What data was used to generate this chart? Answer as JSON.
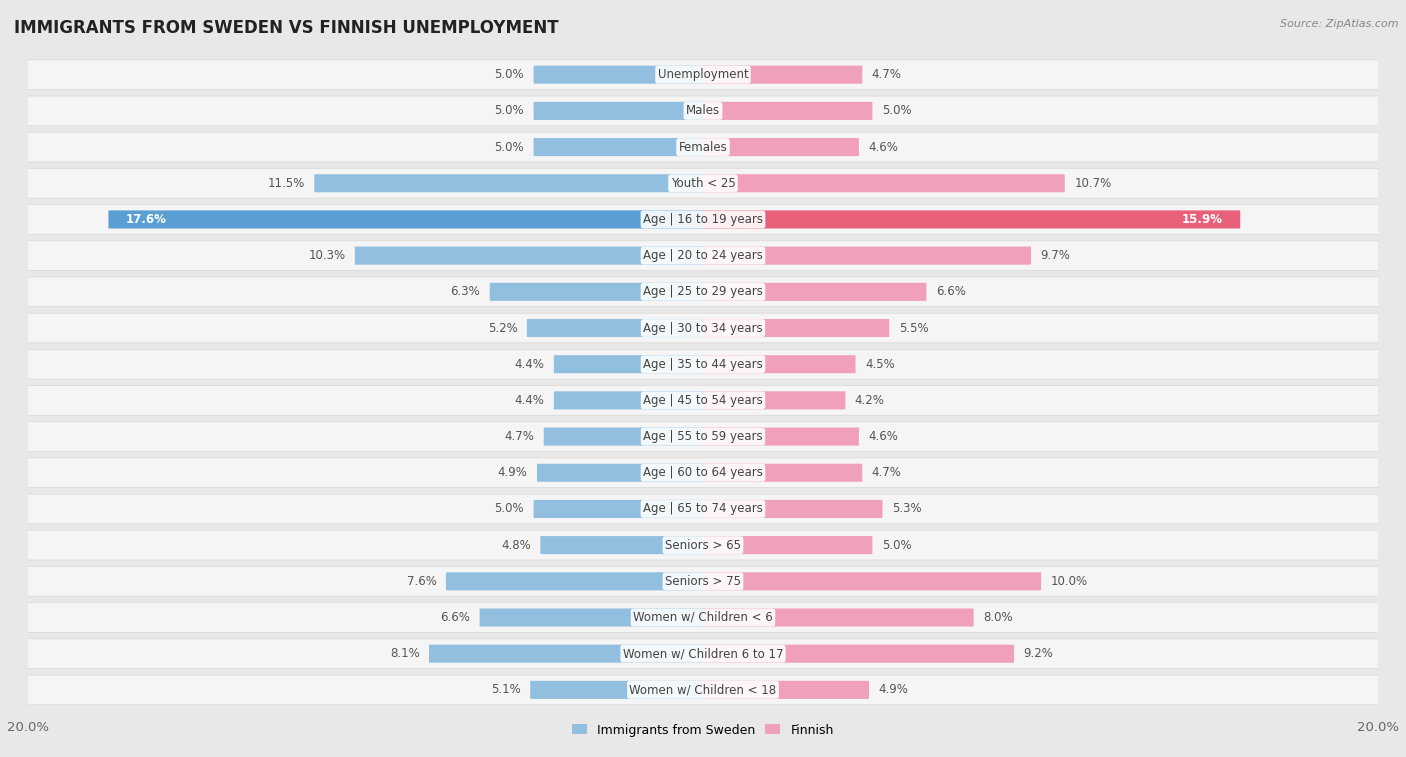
{
  "title": "IMMIGRANTS FROM SWEDEN VS FINNISH UNEMPLOYMENT",
  "source": "Source: ZipAtlas.com",
  "categories": [
    "Unemployment",
    "Males",
    "Females",
    "Youth < 25",
    "Age | 16 to 19 years",
    "Age | 20 to 24 years",
    "Age | 25 to 29 years",
    "Age | 30 to 34 years",
    "Age | 35 to 44 years",
    "Age | 45 to 54 years",
    "Age | 55 to 59 years",
    "Age | 60 to 64 years",
    "Age | 65 to 74 years",
    "Seniors > 65",
    "Seniors > 75",
    "Women w/ Children < 6",
    "Women w/ Children 6 to 17",
    "Women w/ Children < 18"
  ],
  "left_values": [
    5.0,
    5.0,
    5.0,
    11.5,
    17.6,
    10.3,
    6.3,
    5.2,
    4.4,
    4.4,
    4.7,
    4.9,
    5.0,
    4.8,
    7.6,
    6.6,
    8.1,
    5.1
  ],
  "right_values": [
    4.7,
    5.0,
    4.6,
    10.7,
    15.9,
    9.7,
    6.6,
    5.5,
    4.5,
    4.2,
    4.6,
    4.7,
    5.3,
    5.0,
    10.0,
    8.0,
    9.2,
    4.9
  ],
  "left_color": "#92bfdf",
  "right_color": "#f0a0b8",
  "axis_max": 20.0,
  "background_color": "#e8e8e8",
  "row_bg": "#f5f5f5",
  "row_border": "#d8d8d8",
  "legend_left": "Immigrants from Sweden",
  "legend_right": "Finnish",
  "highlight_row": 4,
  "highlight_left_color": "#5a9fd4",
  "highlight_right_color": "#e8607a",
  "value_label_color": "#555555",
  "center_label_color": "#444444",
  "tick_label_color": "#666666"
}
